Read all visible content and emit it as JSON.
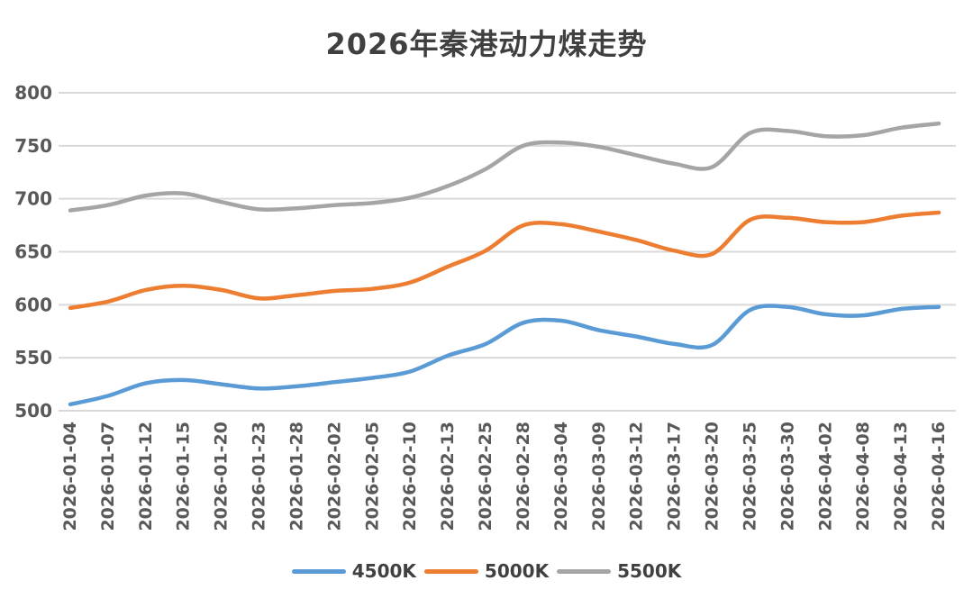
{
  "chart_data": {
    "type": "line",
    "title": "2026年秦港动力煤走势",
    "x": [
      "2026-01-04",
      "2026-01-07",
      "2026-01-12",
      "2026-01-15",
      "2026-01-20",
      "2026-01-23",
      "2026-01-28",
      "2026-02-02",
      "2026-02-05",
      "2026-02-10",
      "2026-02-13",
      "2026-02-25",
      "2026-02-28",
      "2026-03-04",
      "2026-03-09",
      "2026-03-12",
      "2026-03-17",
      "2026-03-20",
      "2026-03-25",
      "2026-03-30",
      "2026-04-02",
      "2026-04-08",
      "2026-04-13",
      "2026-04-16"
    ],
    "series": [
      {
        "name": "4500K",
        "color": "#5B9BD5",
        "values": [
          506,
          514,
          526,
          529,
          525,
          521,
          523,
          527,
          531,
          537,
          552,
          563,
          583,
          585,
          576,
          570,
          563,
          562,
          595,
          598,
          591,
          590,
          596,
          598
        ]
      },
      {
        "name": "5000K",
        "color": "#ED7D31",
        "values": [
          597,
          603,
          614,
          618,
          614,
          606,
          609,
          613,
          615,
          621,
          636,
          651,
          675,
          676,
          669,
          661,
          651,
          648,
          680,
          682,
          678,
          678,
          684,
          687
        ]
      },
      {
        "name": "5500K",
        "color": "#A5A5A5",
        "values": [
          689,
          694,
          703,
          705,
          697,
          690,
          691,
          694,
          696,
          701,
          712,
          728,
          750,
          753,
          749,
          741,
          733,
          730,
          762,
          764,
          759,
          760,
          767,
          771
        ]
      }
    ],
    "ylim": [
      500,
      800
    ],
    "yticks": [
      800,
      750,
      700,
      650,
      600,
      550,
      500
    ],
    "grid": "horizontal",
    "legend_position": "bottom"
  },
  "colors": {
    "title_text": "#404040",
    "axis_label_text": "#595959",
    "gridline": "#D9D9D9",
    "background": "#FFFFFF"
  }
}
